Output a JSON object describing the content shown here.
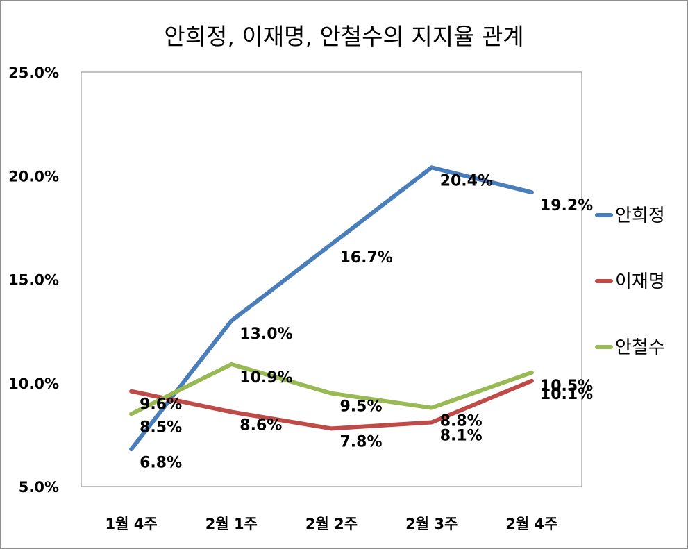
{
  "chart_data": {
    "type": "line",
    "title": "안희정, 이재명, 안철수의 지지율 관계",
    "categories": [
      "1월 4주",
      "2월 1주",
      "2월 2주",
      "2월 3주",
      "2월 4주"
    ],
    "y_ticks": [
      "5.0%",
      "10.0%",
      "15.0%",
      "20.0%",
      "25.0%"
    ],
    "ylim": [
      5,
      25
    ],
    "grid": false,
    "legend_position": "right",
    "series": [
      {
        "name": "안희정",
        "color": "#4a7ebb",
        "values": [
          6.8,
          13.0,
          16.7,
          20.4,
          19.2
        ],
        "labels": [
          "6.8%",
          "13.0%",
          "16.7%",
          "20.4%",
          "19.2%"
        ]
      },
      {
        "name": "이재명",
        "color": "#be4b48",
        "values": [
          9.6,
          8.6,
          7.8,
          8.1,
          10.1
        ],
        "labels": [
          "9.6%",
          "8.6%",
          "7.8%",
          "8.1%",
          "10.1%"
        ]
      },
      {
        "name": "안철수",
        "color": "#98b954",
        "values": [
          8.5,
          10.9,
          9.5,
          8.8,
          10.5
        ],
        "labels": [
          "8.5%",
          "10.9%",
          "9.5%",
          "8.8%",
          "10.5%"
        ]
      }
    ]
  }
}
